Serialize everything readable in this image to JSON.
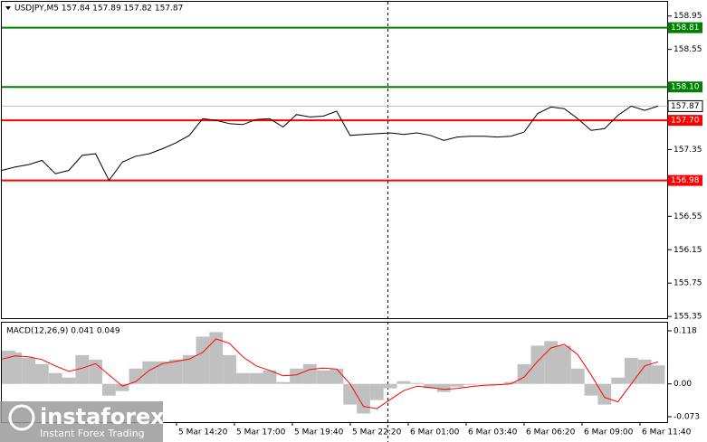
{
  "chart_data": [
    {
      "type": "line",
      "title": "USDJPY,M5  157.84 157.89 157.82 157.87",
      "color": "#000000",
      "values": [
        157.1,
        157.14,
        157.17,
        157.22,
        157.06,
        157.1,
        157.28,
        157.3,
        156.98,
        157.2,
        157.27,
        157.3,
        157.36,
        157.43,
        157.52,
        157.72,
        157.7,
        157.66,
        157.65,
        157.71,
        157.72,
        157.62,
        157.77,
        157.74,
        157.75,
        157.81,
        157.52,
        157.53,
        157.54,
        157.55,
        157.53,
        157.55,
        157.52,
        157.46,
        157.5,
        157.51,
        157.51,
        157.5,
        157.51,
        157.56,
        157.78,
        157.86,
        157.84,
        157.72,
        157.58,
        157.6,
        157.76,
        157.87,
        157.82,
        157.87
      ],
      "ylim": [
        155.33,
        159.12
      ],
      "yticks": [
        158.95,
        158.55,
        157.35,
        156.55,
        156.15,
        155.75,
        155.35
      ],
      "levels": [
        {
          "value": 158.81,
          "color": "#008000"
        },
        {
          "value": 158.1,
          "label": "158.10",
          "color": "#008000"
        },
        {
          "value": 157.7,
          "label": "157.70",
          "color": "#ff0000"
        },
        {
          "value": 156.98,
          "color": "#ff0000"
        }
      ],
      "last_price": 157.87,
      "x_labels": [
        "5 Mar 14:20",
        "5 Mar 17:00",
        "5 Mar 19:40",
        "5 Mar 22:20",
        "6 Mar 01:00",
        "6 Mar 03:40",
        "6 Mar 06:20",
        "6 Mar 09:00",
        "6 Mar 11:40"
      ]
    },
    {
      "type": "macd",
      "title": "MACD(12,26,9) 0.041 0.049",
      "histogram": {
        "color": "#c0c0c0",
        "values": [
          0.074,
          0.07,
          0.058,
          0.044,
          0.024,
          0.014,
          0.064,
          0.054,
          -0.026,
          -0.016,
          0.034,
          0.05,
          0.05,
          0.054,
          0.064,
          0.105,
          0.115,
          0.064,
          0.024,
          0.024,
          0.03,
          0.004,
          0.034,
          0.044,
          0.03,
          0.034,
          -0.046,
          -0.066,
          -0.036,
          -0.01,
          0.006,
          0.002,
          -0.01,
          -0.018,
          -0.006,
          -0.002,
          0.0,
          -0.002,
          0.004,
          0.044,
          0.085,
          0.095,
          0.085,
          0.034,
          -0.026,
          -0.046,
          0.014,
          0.058,
          0.054,
          0.041
        ]
      },
      "signal": {
        "color": "#ff0000",
        "values": [
          0.055,
          0.062,
          0.06,
          0.054,
          0.04,
          0.028,
          0.035,
          0.045,
          0.02,
          -0.005,
          0.005,
          0.03,
          0.045,
          0.05,
          0.055,
          0.07,
          0.1,
          0.09,
          0.06,
          0.04,
          0.03,
          0.018,
          0.02,
          0.032,
          0.035,
          0.033,
          0.0,
          -0.05,
          -0.055,
          -0.035,
          -0.015,
          -0.005,
          -0.008,
          -0.012,
          -0.01,
          -0.006,
          -0.003,
          -0.002,
          0.0,
          0.015,
          0.05,
          0.08,
          0.088,
          0.065,
          0.02,
          -0.03,
          -0.04,
          0.0,
          0.04,
          0.049
        ]
      },
      "ylim": [
        -0.085,
        0.136
      ],
      "yticks": [
        0.118,
        {
          "value": 0,
          "label": "0.00"
        },
        -0.073
      ]
    }
  ],
  "logo": {
    "name": "instaforex",
    "tagline": "Instant Forex Trading"
  }
}
